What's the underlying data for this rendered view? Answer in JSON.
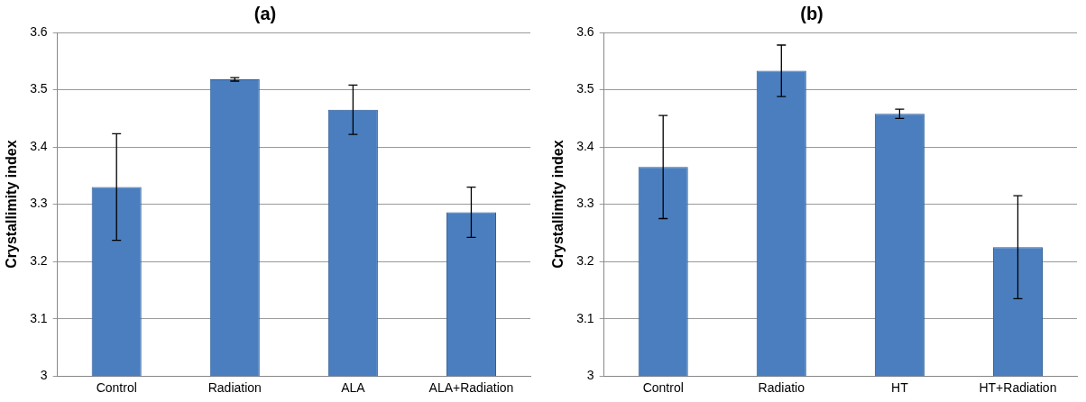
{
  "chart_data": [
    {
      "type": "bar",
      "title": "(a)",
      "ylabel": "Crystallimity index",
      "categories": [
        "Control",
        "Radiation",
        "ALA",
        "ALA+Radiation"
      ],
      "values": [
        3.33,
        3.518,
        3.465,
        3.286
      ],
      "errors": [
        0.093,
        0.003,
        0.043,
        0.044
      ],
      "color": "#4a7ebf",
      "ylim": [
        3,
        3.6
      ],
      "yticks": [
        3,
        3.1,
        3.2,
        3.3,
        3.4,
        3.5,
        3.6
      ],
      "grid": "y",
      "legend": false
    },
    {
      "type": "bar",
      "title": "(b)",
      "ylabel": "Crystallimity index",
      "categories": [
        "Control",
        "Radiatio",
        "HT",
        "HT+Radiation"
      ],
      "values": [
        3.365,
        3.533,
        3.458,
        3.225
      ],
      "errors": [
        0.09,
        0.045,
        0.008,
        0.09
      ],
      "color": "#4a7ebf",
      "ylim": [
        3,
        3.6
      ],
      "yticks": [
        3,
        3.1,
        3.2,
        3.3,
        3.4,
        3.5,
        3.6
      ],
      "grid": "y",
      "legend": false
    }
  ]
}
